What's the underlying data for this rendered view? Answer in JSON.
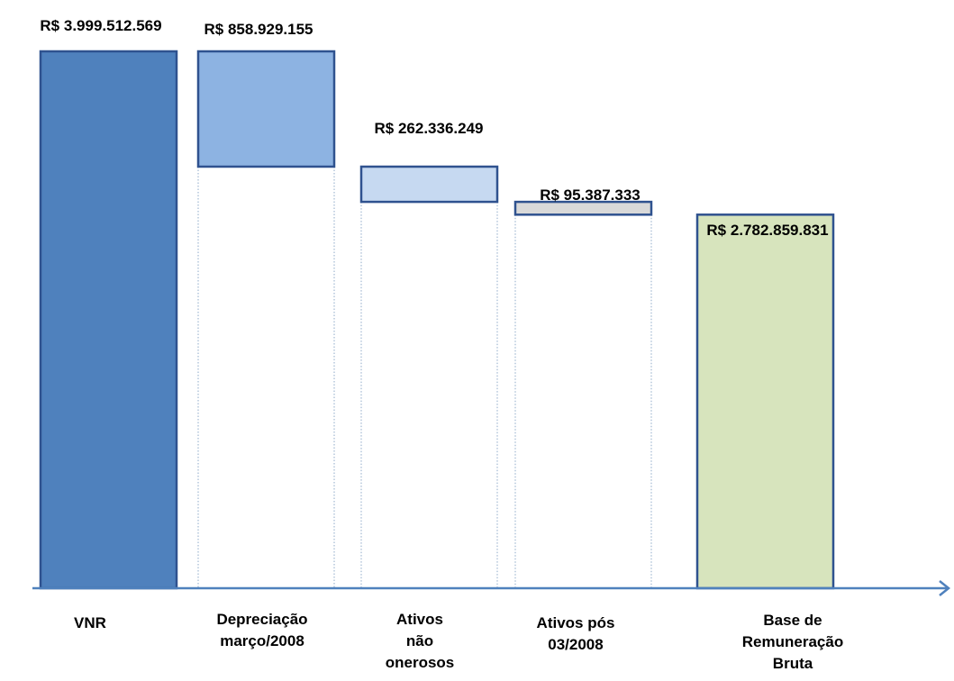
{
  "chart_data": {
    "type": "waterfall",
    "currency_prefix": "R$",
    "categories": [
      [
        "VNR"
      ],
      [
        "Depreciação",
        "março/2008"
      ],
      [
        "Ativos",
        "não",
        "onerosos"
      ],
      [
        "Ativos pós",
        "03/2008"
      ],
      [
        "Base de",
        "Remuneração",
        "Bruta"
      ]
    ],
    "values": [
      3999512569,
      -858929155,
      -262336249,
      -95387333,
      2782859831
    ],
    "bar_kinds": [
      "total",
      "decrease",
      "decrease",
      "decrease",
      "total"
    ],
    "value_labels": [
      "R$ 3.999.512.569",
      "R$ 858.929.155",
      "R$ 262.336.249",
      "R$ 95.387.333",
      "R$ 2.782.859.831"
    ],
    "colors": {
      "fills": [
        "#4f81bd",
        "#8db3e2",
        "#c6d9f1",
        "#d9d9d9",
        "#d7e4bd"
      ],
      "stroke": "#2f528f",
      "axis": "#4f81bd",
      "connector": "#8ea9c8"
    },
    "ylim": [
      0,
      4000000000
    ],
    "grid": false,
    "legend": "none"
  }
}
